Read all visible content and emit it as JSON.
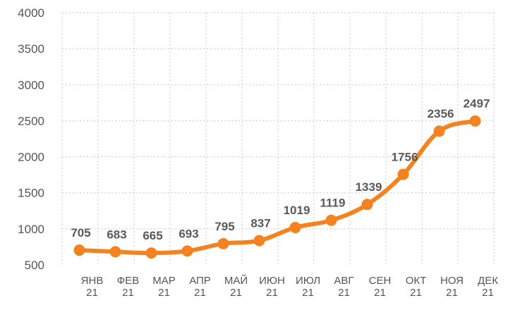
{
  "chart_data": {
    "type": "line",
    "title": "",
    "xlabel": "",
    "ylabel": "",
    "ylim": [
      500,
      4000
    ],
    "y_ticks": [
      500,
      1000,
      1500,
      2000,
      2500,
      3000,
      3500,
      4000
    ],
    "grid": true,
    "line_color": "#f58220",
    "categories": [
      [
        "ЯНВ",
        "21"
      ],
      [
        "ФЕВ",
        "21"
      ],
      [
        "МАР",
        "21"
      ],
      [
        "АПР",
        "21"
      ],
      [
        "МАЙ",
        "21"
      ],
      [
        "ИЮН",
        "21"
      ],
      [
        "ИЮЛ",
        "21"
      ],
      [
        "АВГ",
        "21"
      ],
      [
        "СЕН",
        "21"
      ],
      [
        "ОКТ",
        "21"
      ],
      [
        "НОЯ",
        "21"
      ],
      [
        "ДЕК",
        "21"
      ]
    ],
    "series": [
      {
        "values": [
          705,
          683,
          665,
          693,
          795,
          837,
          1019,
          1119,
          1339,
          1756,
          2356,
          2497
        ]
      }
    ]
  }
}
